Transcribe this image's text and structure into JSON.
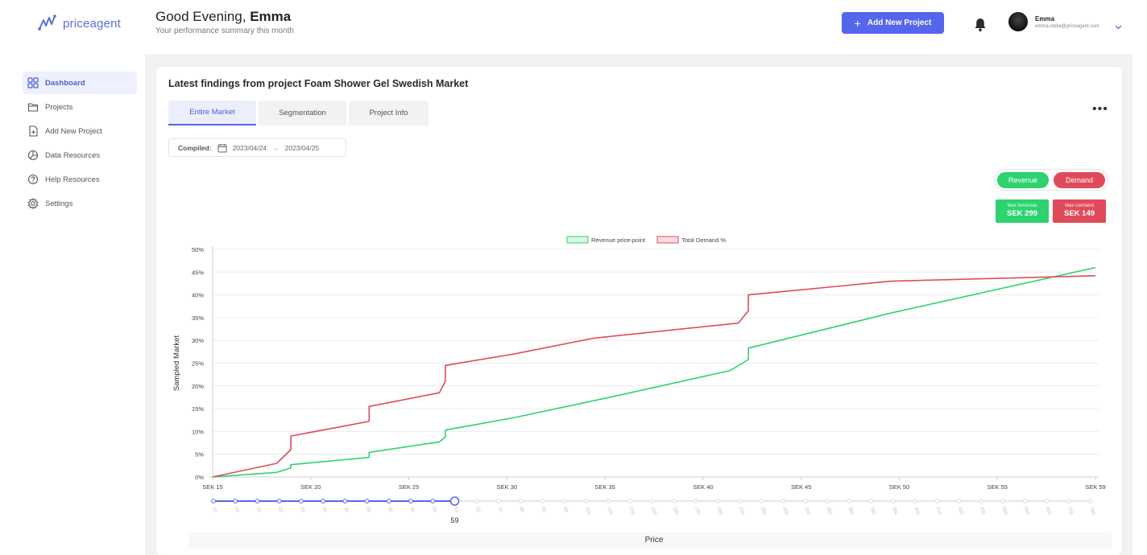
{
  "brand": {
    "name": "priceagent"
  },
  "header": {
    "greeting_prefix": "Good Evening, ",
    "user_first_name": "Emma",
    "subtitle": "Your performance summary this month",
    "add_button_label": "Add New Project",
    "user_name": "Emma",
    "user_email": "emma-stella@priceagent.com"
  },
  "sidebar": {
    "items": [
      {
        "label": "Dashboard",
        "icon": "grid-icon",
        "active": true
      },
      {
        "label": "Projects",
        "icon": "folder-icon",
        "active": false
      },
      {
        "label": "Add New Project",
        "icon": "file-plus-icon",
        "active": false
      },
      {
        "label": "Data Resources",
        "icon": "pie-icon",
        "active": false
      },
      {
        "label": "Help Resources",
        "icon": "help-icon",
        "active": false
      },
      {
        "label": "Settings",
        "icon": "gear-icon",
        "active": false
      }
    ]
  },
  "main": {
    "title": "Latest findings from project Foam Shower Gel Swedish Market",
    "tabs": [
      {
        "label": "Entire Market",
        "active": true
      },
      {
        "label": "Segmentation",
        "active": false
      },
      {
        "label": "Project Info",
        "active": false
      }
    ],
    "compiled_label": "Compiled:",
    "date_from": "2023/04/24",
    "date_to": "2023/04/25",
    "toggle": {
      "revenue_label": "Revenue",
      "demand_label": "Demand"
    },
    "max_revenue": {
      "label": "Max Revenue",
      "value": "SEK 299"
    },
    "max_demand": {
      "label": "Max Demand",
      "value": "SEK 149"
    }
  },
  "colors": {
    "accent": "#5566ee",
    "revenue": "#2dd36f",
    "demand": "#e04b5a"
  },
  "chart_data": {
    "type": "line",
    "legend": [
      "Revenue price-point",
      "Total Demand %"
    ],
    "ylabel": "Sampled Market",
    "xlabel": "Price",
    "ylim": [
      0,
      50
    ],
    "yticks": [
      "0%",
      "5%",
      "10%",
      "15%",
      "20%",
      "25%",
      "30%",
      "35%",
      "40%",
      "45%",
      "50%"
    ],
    "xlim": [
      15,
      59
    ],
    "xticks": [
      "SEK 15",
      "SEK 20",
      "SEK 25",
      "SEK 30",
      "SEK 35",
      "SEK 40",
      "SEK 45",
      "SEK 50",
      "SEK 55",
      "SEK 59"
    ],
    "series": [
      {
        "name": "Total Demand %",
        "color": "#e04b5a",
        "points": [
          [
            15,
            0
          ],
          [
            18.2,
            3
          ],
          [
            18.9,
            6
          ],
          [
            18.9,
            9
          ],
          [
            22.8,
            12.2
          ],
          [
            22.8,
            15.5
          ],
          [
            26.3,
            18.5
          ],
          [
            26.6,
            21
          ],
          [
            26.6,
            24.5
          ],
          [
            30,
            27
          ],
          [
            34,
            30.5
          ],
          [
            41.2,
            33.8
          ],
          [
            41.7,
            36.5
          ],
          [
            41.7,
            40
          ],
          [
            48.8,
            43
          ],
          [
            59,
            44.2
          ]
        ]
      },
      {
        "name": "Revenue price-point",
        "color": "#2dd36f",
        "points": [
          [
            15,
            0
          ],
          [
            18.2,
            1
          ],
          [
            18.9,
            2
          ],
          [
            18.9,
            2.7
          ],
          [
            22.8,
            4.3
          ],
          [
            22.8,
            5.4
          ],
          [
            26.3,
            7.7
          ],
          [
            26.6,
            8.8
          ],
          [
            26.6,
            10.3
          ],
          [
            30,
            13
          ],
          [
            35,
            17.7
          ],
          [
            40.8,
            23.4
          ],
          [
            41.7,
            25.8
          ],
          [
            41.7,
            28.3
          ],
          [
            48.8,
            36
          ],
          [
            59,
            46
          ]
        ]
      }
    ]
  },
  "price_slider": {
    "ticks": [
      "15",
      "19",
      "20",
      "25",
      "29",
      "30",
      "35",
      "39",
      "45",
      "49",
      "55",
      "59",
      "60",
      "70",
      "80",
      "90",
      "99",
      "100",
      "120",
      "150",
      "160",
      "180",
      "190",
      "199",
      "200",
      "250",
      "300",
      "310",
      "350",
      "360",
      "380",
      "390",
      "400",
      "410",
      "450",
      "490",
      "500",
      "560",
      "600",
      "700",
      "780"
    ],
    "selected_value": "59",
    "selected_index": 11
  }
}
